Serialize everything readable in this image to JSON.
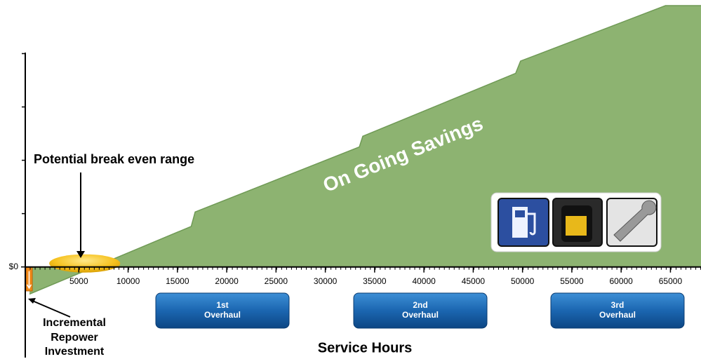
{
  "chart_data": {
    "type": "area",
    "series": [
      {
        "name": "On Going Savings",
        "color": "#8db371",
        "x": [
          0,
          16400,
          16800,
          33450,
          33800,
          49300,
          49800,
          64500,
          68100
        ],
        "values": [
          -0.51,
          0.76,
          1.03,
          2.25,
          2.45,
          3.63,
          3.86,
          4.9,
          4.9
        ]
      }
    ],
    "xlim": [
      -430,
      68100
    ],
    "ylim": [
      -1.7,
      4.9
    ],
    "xticks": [
      5000,
      10000,
      15000,
      20000,
      25000,
      30000,
      35000,
      40000,
      45000,
      50000,
      55000,
      60000,
      65000
    ],
    "yticks": [
      {
        "value": 0,
        "label": "$0"
      }
    ],
    "yminor_ticks": [
      1,
      2,
      3,
      4
    ],
    "investment": -0.45,
    "break_even_range": [
      2000,
      9200
    ],
    "xlabel": "Service Hours",
    "annotations": {
      "break_even": "Potential break even range",
      "investment": [
        "Incremental",
        "Repower",
        "Investment"
      ]
    },
    "overhauls": [
      [
        "1st",
        "Overhaul"
      ],
      [
        "2nd",
        "Overhaul"
      ],
      [
        "3rd",
        "Overhaul"
      ]
    ]
  }
}
